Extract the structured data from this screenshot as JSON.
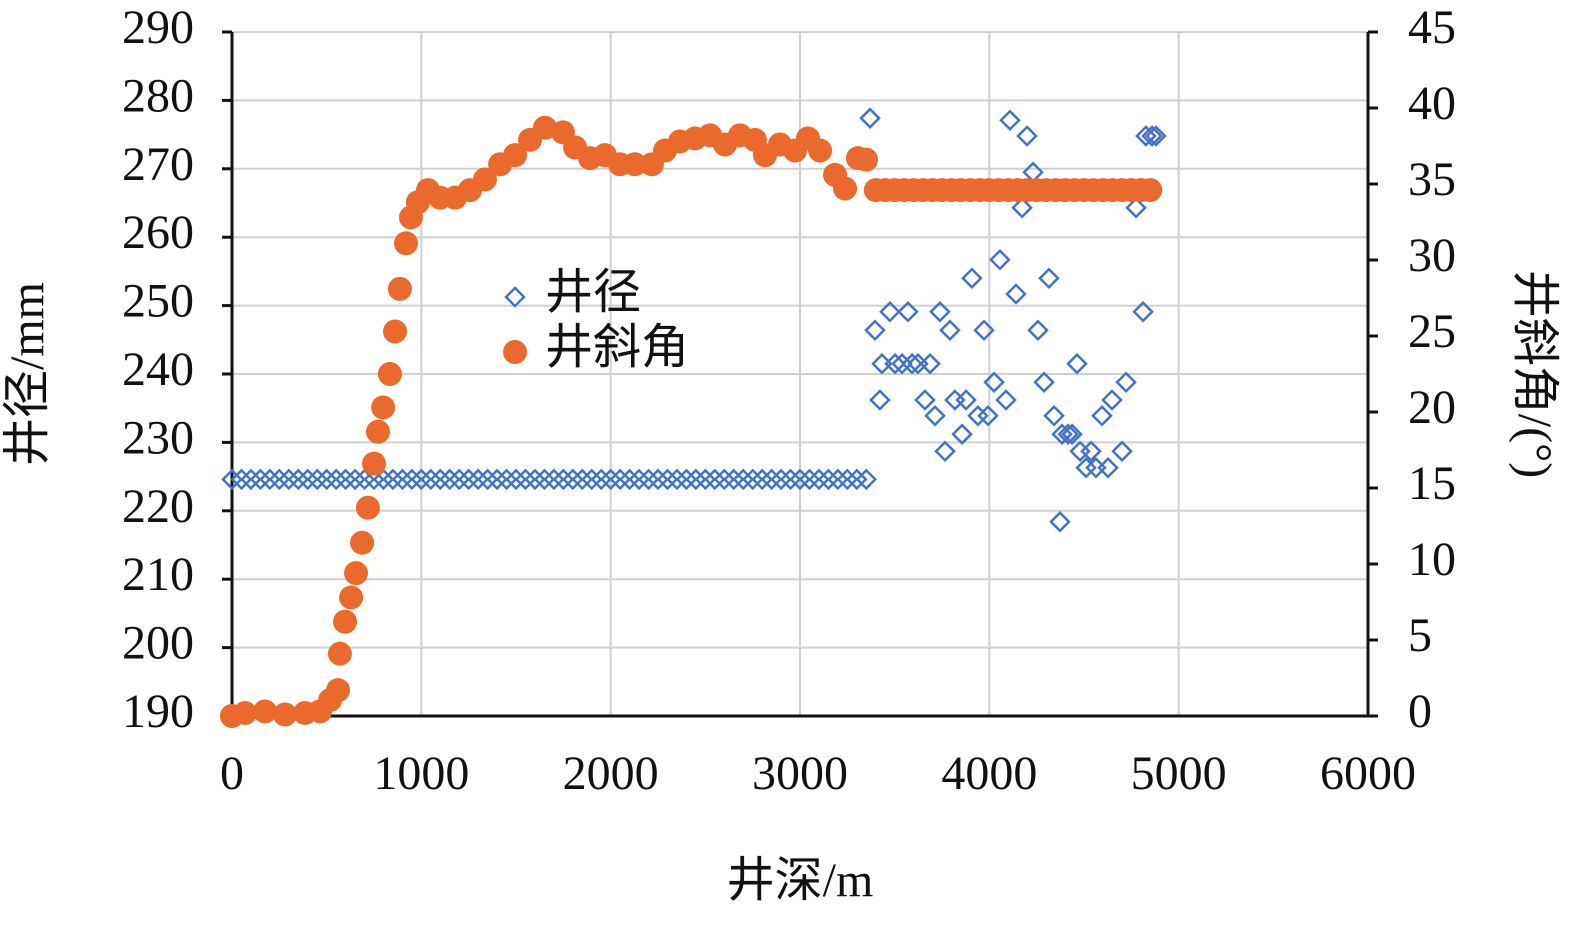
{
  "chart_data": {
    "type": "scatter",
    "xlabel": "井深/m",
    "ylabel": "井径/mm",
    "y2label": "井斜角/(°)",
    "xlim": [
      0,
      6000
    ],
    "xticks": [
      0,
      1000,
      2000,
      3000,
      4000,
      5000,
      6000
    ],
    "ylim": [
      190,
      290
    ],
    "yticks": [
      190,
      200,
      210,
      220,
      230,
      240,
      250,
      260,
      270,
      280,
      290
    ],
    "y2lim": [
      0,
      45
    ],
    "y2ticks": [
      0,
      5,
      10,
      15,
      20,
      25,
      30,
      35,
      40,
      45
    ],
    "grid": true,
    "legend": "center",
    "series": [
      {
        "name": "井径",
        "color": "#4472c4",
        "marker": "diamond",
        "x": [
          0,
          50,
          100,
          150,
          200,
          250,
          300,
          350,
          400,
          450,
          500,
          550,
          600,
          650,
          700,
          750,
          800,
          850,
          900,
          950,
          1000,
          1050,
          1100,
          1150,
          1200,
          1250,
          1300,
          1350,
          1400,
          1450,
          1500,
          1550,
          1600,
          1650,
          1700,
          1750,
          1800,
          1850,
          1900,
          1950,
          2000,
          2050,
          2100,
          2150,
          2200,
          2250,
          2300,
          2350,
          2400,
          2450,
          2500,
          2550,
          2600,
          2650,
          2700,
          2750,
          2800,
          2850,
          2900,
          2950,
          3000,
          3050,
          3100,
          3150,
          3200,
          3250,
          3300,
          3350,
          3370,
          3396,
          3422,
          3433,
          3475,
          3502,
          3539,
          3570,
          3592,
          3623,
          3660,
          3687,
          3713,
          3739,
          3766,
          3792,
          3818,
          3856,
          3877,
          3908,
          3940,
          3972,
          3993,
          4025,
          4056,
          4088,
          4109,
          4141,
          4173,
          4199,
          4231,
          4257,
          4289,
          4315,
          4342,
          4373,
          4384,
          4416,
          4437,
          4463,
          4479,
          4511,
          4537,
          4563,
          4595,
          4627,
          4648,
          4701,
          4722,
          4775,
          4812,
          4827,
          4859,
          4880
        ],
        "values": [
          224.6,
          224.6,
          224.6,
          224.6,
          224.6,
          224.6,
          224.6,
          224.6,
          224.6,
          224.6,
          224.6,
          224.6,
          224.6,
          224.6,
          224.6,
          224.6,
          224.6,
          224.6,
          224.6,
          224.6,
          224.6,
          224.6,
          224.6,
          224.6,
          224.6,
          224.6,
          224.6,
          224.6,
          224.6,
          224.6,
          224.6,
          224.6,
          224.6,
          224.6,
          224.6,
          224.6,
          224.6,
          224.6,
          224.6,
          224.6,
          224.6,
          224.6,
          224.6,
          224.6,
          224.6,
          224.6,
          224.6,
          224.6,
          224.6,
          224.6,
          224.6,
          224.6,
          224.6,
          224.6,
          224.6,
          224.6,
          224.6,
          224.6,
          224.6,
          224.6,
          224.6,
          224.6,
          224.6,
          224.6,
          224.6,
          224.6,
          224.6,
          224.6,
          277.4,
          246.4,
          236.2,
          241.5,
          249.1,
          241.5,
          241.5,
          249.1,
          241.5,
          241.5,
          236.2,
          241.5,
          233.9,
          249.1,
          228.7,
          246.4,
          236.2,
          231.2,
          236.2,
          254,
          233.9,
          246.4,
          233.9,
          238.8,
          256.7,
          236.2,
          277.1,
          251.7,
          264.3,
          274.8,
          269.5,
          246.4,
          238.8,
          254,
          233.9,
          218.4,
          231.2,
          231.2,
          231.2,
          241.5,
          228.7,
          226.3,
          228.7,
          226.3,
          233.9,
          226.3,
          236.2,
          228.7,
          238.8,
          264.3,
          249.1,
          274.8,
          274.8,
          274.8
        ]
      },
      {
        "name": "井斜角",
        "color": "#ea6a2e",
        "marker": "circle",
        "axis": "y2",
        "x": [
          0,
          69,
          174,
          280,
          386,
          465,
          518,
          560,
          570,
          597,
          629,
          655,
          687,
          718,
          750,
          771,
          798,
          834,
          861,
          887,
          919,
          945,
          982,
          1035,
          1099,
          1178,
          1257,
          1336,
          1416,
          1495,
          1574,
          1653,
          1748,
          1812,
          1891,
          1970,
          2049,
          2128,
          2218,
          2287,
          2366,
          2446,
          2525,
          2604,
          2683,
          2762,
          2815,
          2894,
          2974,
          3042,
          3106,
          3185,
          3238,
          3306,
          3349,
          3400,
          3450,
          3500,
          3550,
          3600,
          3650,
          3700,
          3750,
          3800,
          3850,
          3900,
          3950,
          4000,
          4050,
          4100,
          4150,
          4200,
          4250,
          4300,
          4350,
          4400,
          4450,
          4500,
          4550,
          4600,
          4650,
          4700,
          4750,
          4800,
          4850
        ],
        "values": [
          0,
          0.2,
          0.3,
          0.1,
          0.2,
          0.3,
          1.05,
          1.7,
          4.1,
          6.2,
          7.8,
          9.4,
          11.4,
          13.7,
          16.6,
          18.7,
          20.3,
          22.5,
          25.3,
          28.1,
          31.1,
          32.8,
          33.8,
          34.6,
          34.1,
          34.1,
          34.6,
          35.3,
          36.3,
          36.9,
          37.9,
          38.7,
          38.4,
          37.4,
          36.7,
          36.9,
          36.3,
          36.3,
          36.3,
          37.2,
          37.8,
          38,
          38.2,
          37.6,
          38.2,
          37.9,
          36.9,
          37.6,
          37.2,
          38,
          37.2,
          35.6,
          34.7,
          36.7,
          36.6,
          34.6,
          34.6,
          34.6,
          34.6,
          34.6,
          34.6,
          34.6,
          34.6,
          34.6,
          34.6,
          34.6,
          34.6,
          34.6,
          34.6,
          34.6,
          34.6,
          34.6,
          34.6,
          34.6,
          34.6,
          34.6,
          34.6,
          34.6,
          34.6,
          34.6,
          34.6,
          34.6,
          34.6,
          34.6,
          34.6
        ]
      }
    ]
  }
}
